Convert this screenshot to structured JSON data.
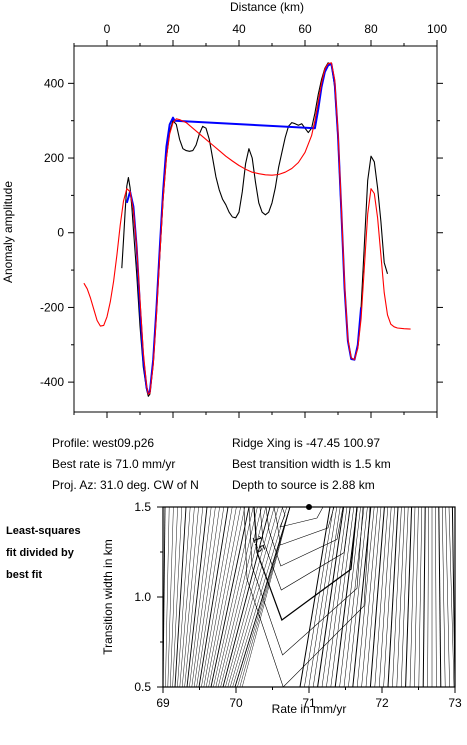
{
  "chart_data": [
    {
      "type": "line",
      "xlabel": "Distance (km)",
      "ylabel": "Anomaly amplitude",
      "xlim": [
        -10,
        100
      ],
      "ylim": [
        -480,
        500
      ],
      "x_ticks": [
        "0",
        "20",
        "40",
        "60",
        "80",
        "100"
      ],
      "y_ticks": [
        "-400",
        "-200",
        "0",
        "200",
        "400"
      ],
      "grid": false,
      "series": [
        {
          "color": "#000000",
          "points": [
            [
              4.5,
              -95
            ],
            [
              5,
              -20
            ],
            [
              5.5,
              60
            ],
            [
              6,
              125
            ],
            [
              6.5,
              148
            ],
            [
              7,
              120
            ],
            [
              7.5,
              70
            ],
            [
              8,
              10
            ],
            [
              9,
              -110
            ],
            [
              10,
              -250
            ],
            [
              11,
              -360
            ],
            [
              12,
              -420
            ],
            [
              12.5,
              -438
            ],
            [
              13,
              -432
            ],
            [
              14,
              -350
            ],
            [
              15,
              -210
            ],
            [
              16,
              -60
            ],
            [
              17,
              90
            ],
            [
              18,
              200
            ],
            [
              19,
              270
            ],
            [
              20,
              300
            ],
            [
              21,
              290
            ],
            [
              22,
              250
            ],
            [
              23,
              225
            ],
            [
              24,
              220
            ],
            [
              25,
              218
            ],
            [
              26,
              220
            ],
            [
              27,
              235
            ],
            [
              28,
              265
            ],
            [
              29,
              285
            ],
            [
              30,
              280
            ],
            [
              31,
              250
            ],
            [
              32,
              200
            ],
            [
              33,
              150
            ],
            [
              34,
              115
            ],
            [
              35,
              90
            ],
            [
              36,
              75
            ],
            [
              37,
              55
            ],
            [
              38,
              42
            ],
            [
              39,
              40
            ],
            [
              40,
              55
            ],
            [
              41,
              110
            ],
            [
              42,
              185
            ],
            [
              43,
              225
            ],
            [
              44,
              200
            ],
            [
              45,
              135
            ],
            [
              46,
              80
            ],
            [
              47,
              55
            ],
            [
              48,
              48
            ],
            [
              49,
              55
            ],
            [
              50,
              80
            ],
            [
              51,
              120
            ],
            [
              52,
              175
            ],
            [
              53,
              215
            ],
            [
              54,
              255
            ],
            [
              55,
              285
            ],
            [
              56,
              295
            ],
            [
              57,
              292
            ],
            [
              58,
              288
            ],
            [
              59,
              292
            ],
            [
              60,
              280
            ],
            [
              61,
              268
            ],
            [
              62,
              280
            ],
            [
              63,
              320
            ],
            [
              64,
              370
            ],
            [
              65,
              410
            ],
            [
              66,
              440
            ],
            [
              67,
              455
            ],
            [
              68,
              450
            ],
            [
              69,
              390
            ],
            [
              70,
              250
            ],
            [
              71,
              50
            ],
            [
              72,
              -150
            ],
            [
              73,
              -290
            ],
            [
              74,
              -335
            ],
            [
              75,
              -340
            ],
            [
              76,
              -300
            ],
            [
              77,
              -200
            ],
            [
              78,
              -30
            ],
            [
              79,
              140
            ],
            [
              80,
              205
            ],
            [
              81,
              190
            ],
            [
              82,
              120
            ],
            [
              83,
              30
            ],
            [
              84,
              -80
            ],
            [
              85,
              -110
            ]
          ]
        },
        {
          "color": "#0000ff",
          "points": [
            [
              6,
              80
            ],
            [
              7,
              110
            ],
            [
              8,
              70
            ],
            [
              9,
              -40
            ],
            [
              10,
              -200
            ],
            [
              11,
              -340
            ],
            [
              12,
              -415
            ],
            [
              12.5,
              -430
            ],
            [
              13,
              -425
            ],
            [
              14,
              -340
            ],
            [
              15,
              -200
            ],
            [
              16,
              -40
            ],
            [
              17,
              110
            ],
            [
              18,
              230
            ],
            [
              19,
              290
            ],
            [
              20,
              308
            ],
            [
              20.5,
              300
            ],
            [
              63,
              280
            ],
            [
              64,
              330
            ],
            [
              65,
              390
            ],
            [
              66,
              430
            ],
            [
              67,
              448
            ],
            [
              68,
              452
            ],
            [
              69,
              400
            ],
            [
              70,
              260
            ],
            [
              71,
              60
            ],
            [
              72,
              -150
            ],
            [
              73,
              -290
            ],
            [
              74,
              -338
            ],
            [
              75,
              -340
            ],
            [
              76,
              -300
            ],
            [
              77,
              -200
            ]
          ]
        },
        {
          "color": "#ff0000",
          "points": [
            [
              -7,
              -135
            ],
            [
              -6,
              -150
            ],
            [
              -5,
              -175
            ],
            [
              -4,
              -205
            ],
            [
              -3,
              -235
            ],
            [
              -2,
              -250
            ],
            [
              -1,
              -248
            ],
            [
              0,
              -225
            ],
            [
              1,
              -185
            ],
            [
              2,
              -130
            ],
            [
              3,
              -60
            ],
            [
              4,
              20
            ],
            [
              5,
              85
            ],
            [
              6,
              118
            ],
            [
              7,
              110
            ],
            [
              8,
              60
            ],
            [
              9,
              -40
            ],
            [
              10,
              -180
            ],
            [
              11,
              -320
            ],
            [
              12,
              -410
            ],
            [
              12.5,
              -432
            ],
            [
              13,
              -430
            ],
            [
              14,
              -355
            ],
            [
              15,
              -220
            ],
            [
              16,
              -60
            ],
            [
              17,
              90
            ],
            [
              18,
              200
            ],
            [
              19,
              265
            ],
            [
              20,
              295
            ],
            [
              21,
              305
            ],
            [
              22,
              303
            ],
            [
              24,
              295
            ],
            [
              26,
              280
            ],
            [
              28,
              265
            ],
            [
              30,
              250
            ],
            [
              32,
              235
            ],
            [
              34,
              220
            ],
            [
              36,
              205
            ],
            [
              38,
              192
            ],
            [
              40,
              180
            ],
            [
              42,
              170
            ],
            [
              44,
              162
            ],
            [
              46,
              158
            ],
            [
              48,
              155
            ],
            [
              50,
              154
            ],
            [
              52,
              156
            ],
            [
              54,
              162
            ],
            [
              56,
              172
            ],
            [
              58,
              188
            ],
            [
              60,
              215
            ],
            [
              62,
              260
            ],
            [
              63,
              300
            ],
            [
              64,
              350
            ],
            [
              65,
              400
            ],
            [
              66,
              438
            ],
            [
              67,
              453
            ],
            [
              68,
              455
            ],
            [
              69,
              410
            ],
            [
              70,
              270
            ],
            [
              71,
              70
            ],
            [
              72,
              -140
            ],
            [
              73,
              -285
            ],
            [
              74,
              -335
            ],
            [
              75,
              -340
            ],
            [
              76,
              -310
            ],
            [
              77,
              -230
            ],
            [
              78,
              -90
            ],
            [
              79,
              50
            ],
            [
              80,
              118
            ],
            [
              81,
              105
            ],
            [
              82,
              40
            ],
            [
              83,
              -60
            ],
            [
              84,
              -160
            ],
            [
              85,
              -220
            ],
            [
              86,
              -245
            ],
            [
              87,
              -252
            ],
            [
              88,
              -255
            ],
            [
              90,
              -257
            ],
            [
              92,
              -258
            ]
          ]
        }
      ]
    },
    {
      "type": "contour",
      "xlabel": "Rate in mm/yr",
      "ylabel": "Transition width in km",
      "xlim": [
        69,
        73
      ],
      "ylim": [
        0.5,
        1.5
      ],
      "x_ticks": [
        "69",
        "70",
        "71",
        "72",
        "73"
      ],
      "y_ticks": [
        "0.5",
        "1.0",
        "1.5"
      ],
      "contour_label": "1.5",
      "best_fit_point": [
        71.0,
        1.5
      ]
    }
  ],
  "info": {
    "profile": "Profile: west09.p26",
    "best_rate": "Best rate is 71.0 mm/yr",
    "proj_az": "Proj. Az: 31.0 deg. CW of N",
    "ridge_xing": "Ridge Xing is -47.45 100.97",
    "best_transition": "Best transition width is 1.5 km",
    "depth": "Depth to source is   2.88 km"
  },
  "side_note": {
    "line1": "Least-squares",
    "line2": "fit divided by",
    "line3": "best fit"
  }
}
